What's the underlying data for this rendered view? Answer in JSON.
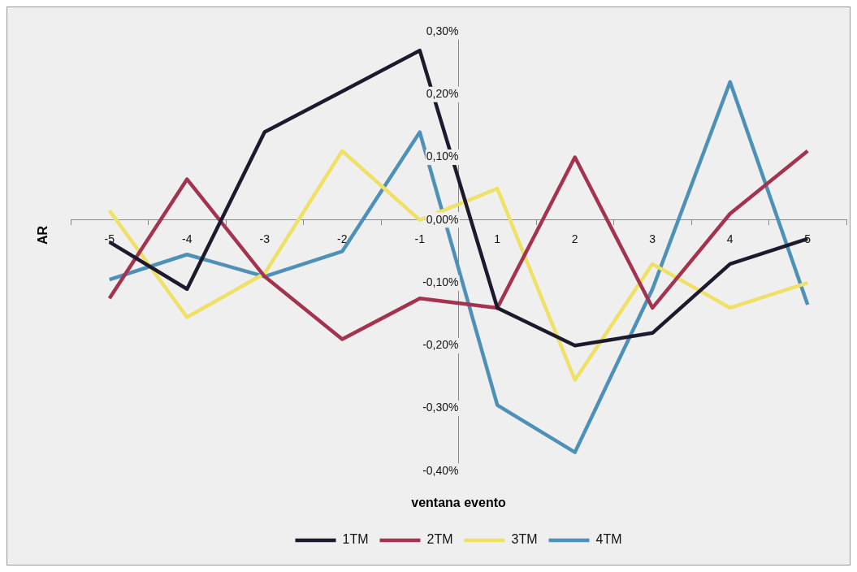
{
  "chart_data": {
    "type": "line",
    "xlabel": "ventana evento",
    "ylabel": "AR",
    "categories": [
      "-5",
      "-4",
      "-3",
      "-2",
      "-1",
      "1",
      "2",
      "3",
      "4",
      "5"
    ],
    "series": [
      {
        "name": "1TM",
        "color": "#1c1a2c",
        "values": [
          -0.035,
          -0.11,
          0.14,
          0.205,
          0.27,
          -0.14,
          -0.2,
          -0.18,
          -0.07,
          -0.03
        ]
      },
      {
        "name": "2TM",
        "color": "#a3334f",
        "values": [
          -0.125,
          0.065,
          -0.09,
          -0.19,
          -0.125,
          -0.14,
          0.1,
          -0.14,
          0.01,
          0.11
        ]
      },
      {
        "name": "3TM",
        "color": "#efe066",
        "values": [
          0.015,
          -0.155,
          -0.085,
          0.11,
          0.0,
          0.05,
          -0.255,
          -0.07,
          -0.14,
          -0.1
        ]
      },
      {
        "name": "4TM",
        "color": "#4d90b8",
        "values": [
          -0.095,
          -0.055,
          -0.09,
          -0.05,
          0.14,
          -0.295,
          -0.37,
          -0.11,
          0.22,
          -0.135
        ]
      }
    ],
    "ylim": [
      -0.4,
      0.3
    ],
    "yticks": [
      {
        "value": -0.4,
        "label": "-0,40%"
      },
      {
        "value": -0.3,
        "label": "-0,30%"
      },
      {
        "value": -0.2,
        "label": "-0,20%"
      },
      {
        "value": -0.1,
        "label": "-0,10%"
      },
      {
        "value": 0,
        "label": "0,00%"
      },
      {
        "value": 0.1,
        "label": "0,10%"
      },
      {
        "value": 0.2,
        "label": "0,20%"
      },
      {
        "value": 0.3,
        "label": "0,30%"
      }
    ],
    "legend": "bottom",
    "marker": "none",
    "line_style": "solid"
  }
}
